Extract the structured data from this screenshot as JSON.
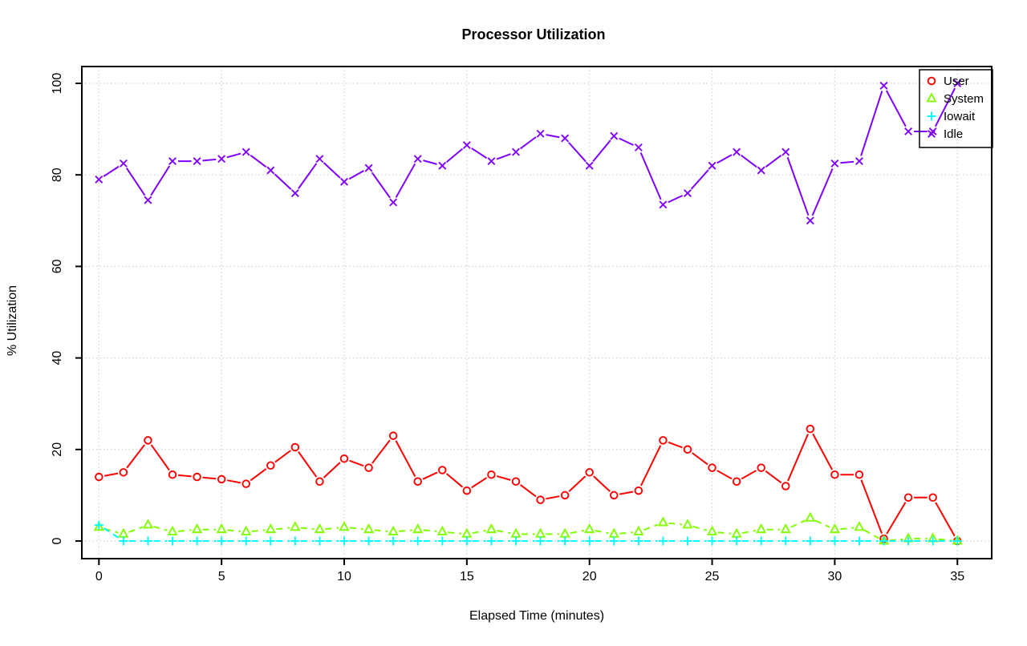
{
  "chart_data": {
    "type": "line",
    "title": "Processor Utilization",
    "xlabel": "Elapsed Time (minutes)",
    "ylabel": "% Utilization",
    "xlim": [
      0,
      35
    ],
    "ylim": [
      0,
      100
    ],
    "xticks": [
      0,
      5,
      10,
      15,
      20,
      25,
      30,
      35
    ],
    "yticks": [
      0,
      20,
      40,
      60,
      80,
      100
    ],
    "grid": "dotted",
    "grid_color": "#d0d0d0",
    "legend_position": "top-right",
    "x": [
      0,
      1,
      2,
      3,
      4,
      5,
      6,
      7,
      8,
      9,
      10,
      11,
      12,
      13,
      14,
      15,
      16,
      17,
      18,
      19,
      20,
      21,
      22,
      23,
      24,
      25,
      26,
      27,
      28,
      29,
      30,
      31,
      32,
      33,
      34,
      35
    ],
    "series": [
      {
        "name": "User",
        "color": "#ff0000",
        "marker": "circle",
        "line_style": "solid",
        "values": [
          14,
          15,
          22,
          14.5,
          14,
          13.5,
          12.5,
          16.5,
          20.5,
          13,
          18,
          16,
          23,
          13,
          15.5,
          11,
          14.5,
          13,
          9,
          10,
          15,
          10,
          11,
          22,
          20,
          16,
          13,
          16,
          12,
          24.5,
          14.5,
          14.5,
          0.5,
          9.5,
          9.5,
          0
        ]
      },
      {
        "name": "System",
        "color": "#80ff00",
        "marker": "triangle",
        "line_style": "dashed",
        "values": [
          3,
          1.5,
          3.5,
          2,
          2.5,
          2.5,
          2,
          2.5,
          3,
          2.5,
          3,
          2.5,
          2,
          2.5,
          2,
          1.5,
          2.5,
          1.5,
          1.5,
          1.5,
          2.5,
          1.5,
          2,
          4,
          3.5,
          2,
          1.5,
          2.5,
          2.5,
          5,
          2.5,
          3,
          0,
          0.5,
          0.5,
          0
        ]
      },
      {
        "name": "Iowait",
        "color": "#00ffff",
        "marker": "plus",
        "line_style": "dashed",
        "values": [
          3.5,
          0,
          0,
          0,
          0,
          0,
          0,
          0,
          0,
          0,
          0,
          0,
          0,
          0,
          0,
          0,
          0,
          0,
          0,
          0,
          0,
          0,
          0,
          0,
          0,
          0,
          0,
          0,
          0,
          0,
          0,
          0,
          0,
          0,
          0,
          0
        ]
      },
      {
        "name": "Idle",
        "color": "#8000ff",
        "marker": "x",
        "line_style": "solid",
        "values": [
          79,
          82.5,
          74.5,
          83,
          83,
          83.5,
          85,
          81,
          76,
          83.5,
          78.5,
          81.5,
          74,
          83.5,
          82,
          86.5,
          83,
          85,
          89,
          88,
          82,
          88.5,
          86,
          73.5,
          76,
          82,
          85,
          81,
          85,
          70,
          82.5,
          83,
          99.5,
          89.5,
          89.5,
          100
        ]
      }
    ]
  }
}
